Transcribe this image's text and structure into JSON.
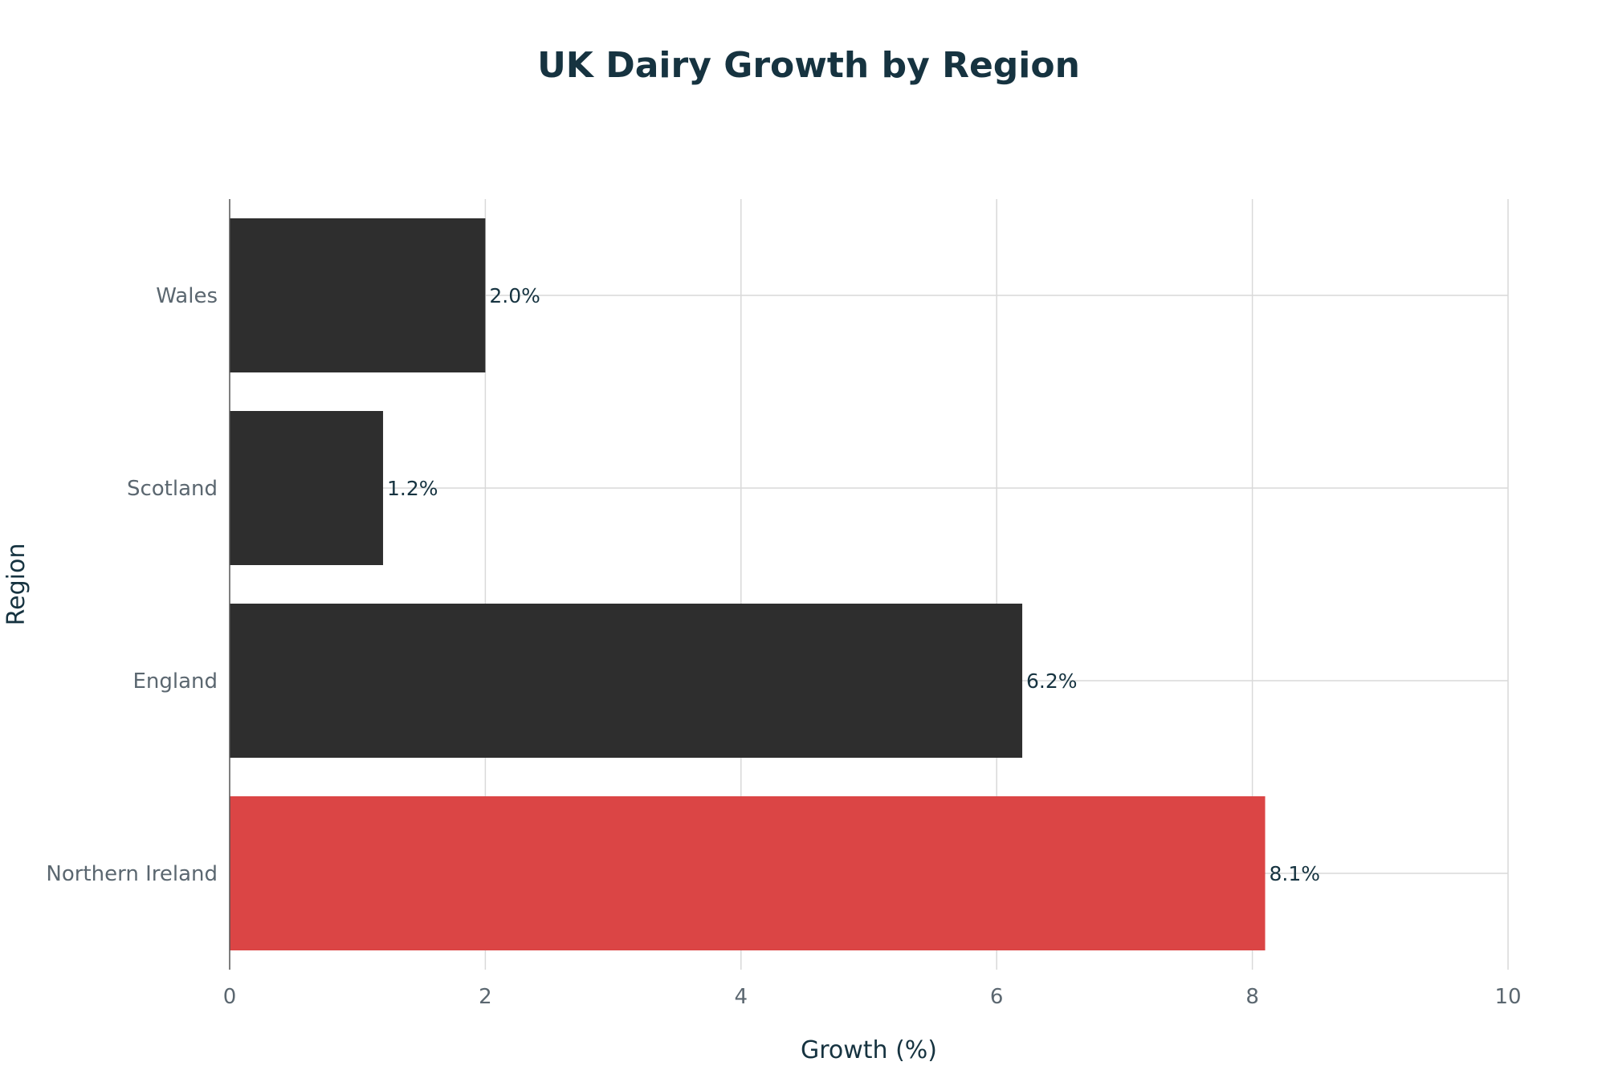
{
  "chart_data": {
    "type": "bar",
    "orientation": "horizontal",
    "title": "UK Dairy Growth by Region",
    "xlabel": "Growth (%)",
    "ylabel": "Region",
    "categories": [
      "Wales",
      "Scotland",
      "England",
      "Northern Ireland"
    ],
    "values": [
      2.0,
      1.2,
      6.2,
      8.1
    ],
    "data_labels": [
      "2.0%",
      "1.2%",
      "6.2%",
      "8.1%"
    ],
    "bar_colors": [
      "#2e2e2e",
      "#2e2e2e",
      "#2e2e2e",
      "#db4545"
    ],
    "xlim": [
      0,
      10
    ],
    "xticks": [
      0,
      2,
      4,
      6,
      8,
      10
    ],
    "xtick_labels": [
      "0",
      "2",
      "4",
      "6",
      "8",
      "10"
    ],
    "grid": true,
    "legend": "none"
  }
}
